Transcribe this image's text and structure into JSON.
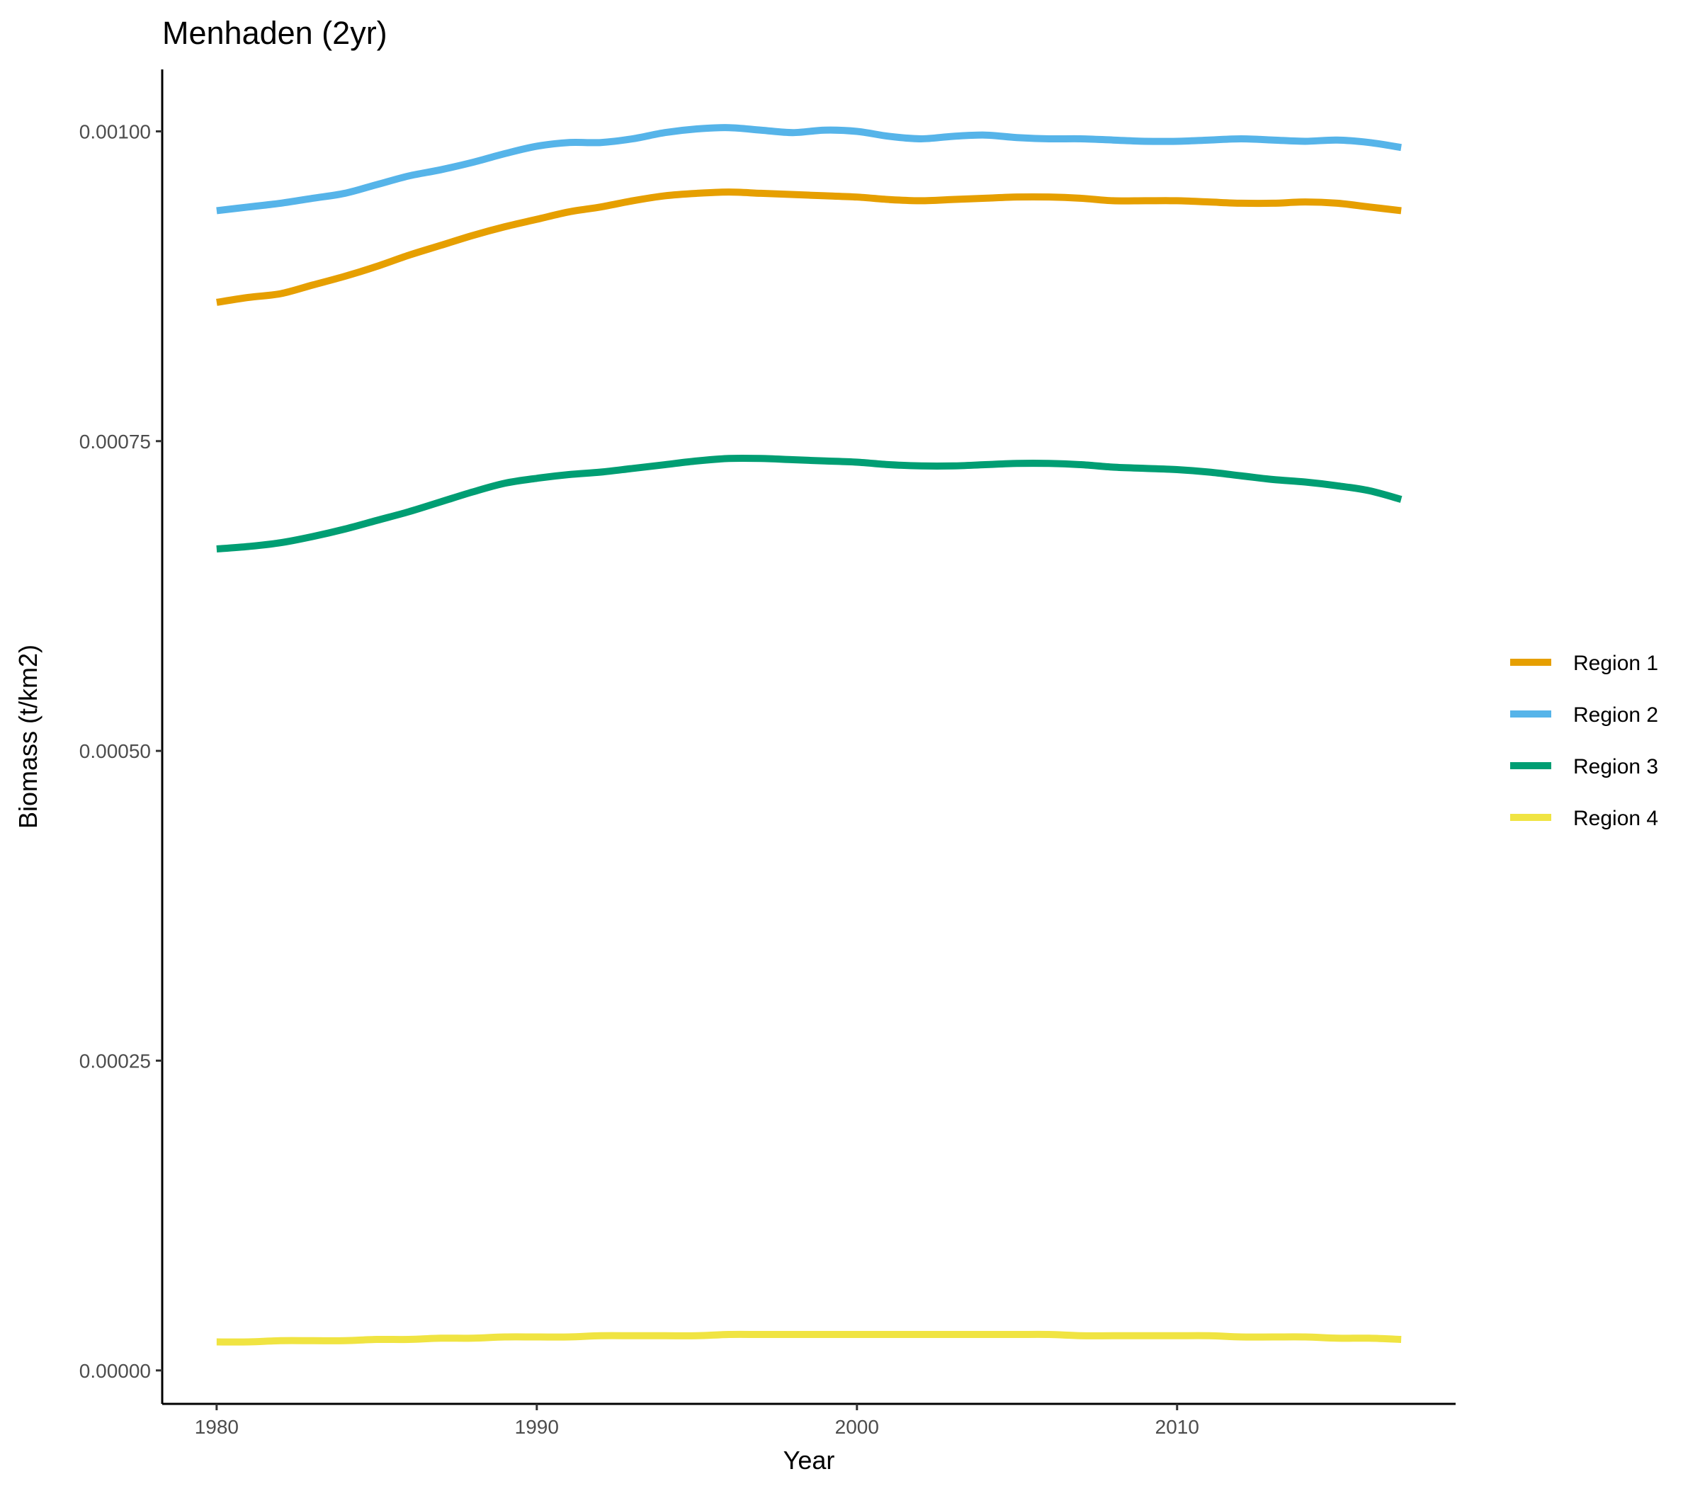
{
  "chart_data": {
    "type": "line",
    "title": "Menhaden (2yr)",
    "xlabel": "Year",
    "ylabel": "Biomass (t/km2)",
    "xlim": [
      1978.3,
      2018.7
    ],
    "ylim": [
      -2.7e-05,
      0.00105
    ],
    "x_ticks": [
      1980,
      1990,
      2000,
      2010
    ],
    "x_tick_labels": [
      "1980",
      "1990",
      "2000",
      "2010"
    ],
    "y_ticks": [
      0,
      0.00025,
      0.0005,
      0.00075,
      0.001
    ],
    "y_tick_labels": [
      "0.00000",
      "0.00025",
      "0.00050",
      "0.00075",
      "0.00100"
    ],
    "grid": false,
    "legend_position": "right",
    "x": [
      1980,
      1981,
      1982,
      1983,
      1984,
      1985,
      1986,
      1987,
      1988,
      1989,
      1990,
      1991,
      1992,
      1993,
      1994,
      1995,
      1996,
      1997,
      1998,
      1999,
      2000,
      2001,
      2002,
      2003,
      2004,
      2005,
      2006,
      2007,
      2008,
      2009,
      2010,
      2011,
      2012,
      2013,
      2014,
      2015,
      2016,
      2017
    ],
    "series": [
      {
        "name": "Region 1",
        "color": "#E69F00",
        "values": [
          0.000862,
          0.000866,
          0.000869,
          0.000876,
          0.000883,
          0.000891,
          0.0009,
          0.000908,
          0.000916,
          0.000923,
          0.000929,
          0.000935,
          0.000939,
          0.000944,
          0.000948,
          0.00095,
          0.000951,
          0.00095,
          0.000949,
          0.000948,
          0.000947,
          0.000945,
          0.000944,
          0.000945,
          0.000946,
          0.000947,
          0.000947,
          0.000946,
          0.000944,
          0.000944,
          0.000944,
          0.000943,
          0.000942,
          0.000942,
          0.000943,
          0.000942,
          0.000939,
          0.000936
        ]
      },
      {
        "name": "Region 2",
        "color": "#56B4E9",
        "values": [
          0.000936,
          0.000939,
          0.000942,
          0.000946,
          0.00095,
          0.000957,
          0.000964,
          0.000969,
          0.000975,
          0.000982,
          0.000988,
          0.000991,
          0.000991,
          0.000994,
          0.000999,
          0.001002,
          0.001003,
          0.001001,
          0.000999,
          0.001001,
          0.001,
          0.000996,
          0.000994,
          0.000996,
          0.000997,
          0.000995,
          0.000994,
          0.000994,
          0.000993,
          0.000992,
          0.000992,
          0.000993,
          0.000994,
          0.000993,
          0.000992,
          0.000993,
          0.000991,
          0.000987
        ]
      },
      {
        "name": "Region 3",
        "color": "#009E73",
        "values": [
          0.000663,
          0.000665,
          0.000668,
          0.000673,
          0.000679,
          0.000686,
          0.000693,
          0.000701,
          0.000709,
          0.000716,
          0.00072,
          0.000723,
          0.000725,
          0.000728,
          0.000731,
          0.000734,
          0.000736,
          0.000736,
          0.000735,
          0.000734,
          0.000733,
          0.000731,
          0.00073,
          0.00073,
          0.000731,
          0.000732,
          0.000732,
          0.000731,
          0.000729,
          0.000728,
          0.000727,
          0.000725,
          0.000722,
          0.000719,
          0.000717,
          0.000714,
          0.00071,
          0.000703
        ]
      },
      {
        "name": "Region 4",
        "color": "#F0E442",
        "values": [
          2.3e-05,
          2.3e-05,
          2.4e-05,
          2.4e-05,
          2.4e-05,
          2.5e-05,
          2.5e-05,
          2.6e-05,
          2.6e-05,
          2.7e-05,
          2.7e-05,
          2.7e-05,
          2.8e-05,
          2.8e-05,
          2.8e-05,
          2.8e-05,
          2.9e-05,
          2.9e-05,
          2.9e-05,
          2.9e-05,
          2.9e-05,
          2.9e-05,
          2.9e-05,
          2.9e-05,
          2.9e-05,
          2.9e-05,
          2.9e-05,
          2.8e-05,
          2.8e-05,
          2.8e-05,
          2.8e-05,
          2.8e-05,
          2.7e-05,
          2.7e-05,
          2.7e-05,
          2.6e-05,
          2.6e-05,
          2.5e-05
        ]
      }
    ]
  }
}
